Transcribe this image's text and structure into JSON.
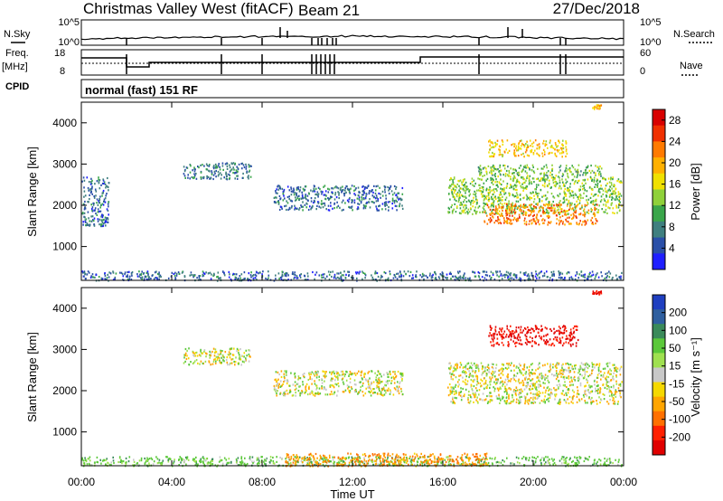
{
  "header": {
    "title": "Christmas Valley West (fitACF)",
    "beam": "Beam 21",
    "date": "27/Dec/2018"
  },
  "top_panels": {
    "nsky_label": "N.Sky",
    "nsearch_label": "N.Search",
    "noise_ticks": [
      "10^5",
      "10^0"
    ],
    "noise_ticks_right": [
      "10^5",
      "10^0"
    ],
    "freq_label": "Freq.",
    "freq_unit": "[MHz]",
    "freq_ticks": [
      "18",
      "8"
    ],
    "nave_label": "Nave",
    "nave_ticks": [
      "60",
      "0"
    ],
    "cpid_label": "CPID",
    "cpid_value": "normal (fast) 151 RF"
  },
  "x_axis": {
    "label": "Time UT",
    "ticks": [
      "00:00",
      "04:00",
      "08:00",
      "12:00",
      "16:00",
      "20:00",
      "00:00"
    ]
  },
  "colors": {
    "power": [
      "#1f1fff",
      "#2a4fa8",
      "#3f7f7f",
      "#3aa64a",
      "#8fd13a",
      "#f0e000",
      "#ffb000",
      "#ff7a00",
      "#f03000",
      "#d80000"
    ],
    "velocity": [
      "#1f3fc0",
      "#2f5f9f",
      "#3a8a5a",
      "#5bc83a",
      "#9fe050",
      "#c8c8c8",
      "#f5d800",
      "#ffa500",
      "#ff7000",
      "#ff2000",
      "#e00000"
    ]
  },
  "chart_data": [
    {
      "type": "heatmap",
      "title": "",
      "xlabel": "Time UT",
      "ylabel": "Slant Range [km]",
      "x_range_hours": [
        0,
        24
      ],
      "ylim": [
        180,
        4500
      ],
      "y_ticks": [
        "1000",
        "2000",
        "3000",
        "4000"
      ],
      "colorbar": {
        "label": "Power [dB]",
        "ticks": [
          "4",
          "8",
          "12",
          "16",
          "20",
          "24",
          "28"
        ],
        "range": [
          0,
          30
        ]
      },
      "regions": [
        {
          "t0": 0.0,
          "t1": 23.9,
          "r0": 190,
          "r1": 420,
          "value": 6
        },
        {
          "t0": 0.0,
          "t1": 1.2,
          "r0": 1500,
          "r1": 2700,
          "value": 6
        },
        {
          "t0": 4.5,
          "t1": 7.5,
          "r0": 2650,
          "r1": 3050,
          "value": 7
        },
        {
          "t0": 8.5,
          "t1": 14.2,
          "r0": 1900,
          "r1": 2500,
          "value": 6
        },
        {
          "t0": 16.2,
          "t1": 23.9,
          "r0": 1800,
          "r1": 2700,
          "value": 13
        },
        {
          "t0": 17.8,
          "t1": 22.8,
          "r0": 1550,
          "r1": 2050,
          "value": 22
        },
        {
          "t0": 18.0,
          "t1": 21.5,
          "r0": 3200,
          "r1": 3600,
          "value": 18
        },
        {
          "t0": 17.5,
          "t1": 23.0,
          "r0": 2700,
          "r1": 3000,
          "value": 12
        },
        {
          "t0": 22.6,
          "t1": 23.0,
          "r0": 4350,
          "r1": 4450,
          "value": 20
        }
      ]
    },
    {
      "type": "heatmap",
      "title": "",
      "xlabel": "Time UT",
      "ylabel": "Slant Range [km]",
      "x_range_hours": [
        0,
        24
      ],
      "ylim": [
        180,
        4500
      ],
      "y_ticks": [
        "1000",
        "2000",
        "3000",
        "4000"
      ],
      "colorbar": {
        "label": "Velocity [m s⁻¹]",
        "ticks": [
          "200",
          "100",
          "50",
          "15",
          "-15",
          "-50",
          "-100",
          "-200"
        ],
        "range": [
          -250,
          250
        ]
      },
      "regions": [
        {
          "t0": 0.0,
          "t1": 23.9,
          "r0": 190,
          "r1": 420,
          "value": 30
        },
        {
          "t0": 9.0,
          "t1": 18.0,
          "r0": 190,
          "r1": 500,
          "value": -40
        },
        {
          "t0": 4.5,
          "t1": 7.5,
          "r0": 2650,
          "r1": 3050,
          "value": 0
        },
        {
          "t0": 8.5,
          "t1": 14.2,
          "r0": 1900,
          "r1": 2500,
          "value": 0
        },
        {
          "t0": 16.2,
          "t1": 23.9,
          "r0": 1700,
          "r1": 2700,
          "value": 0
        },
        {
          "t0": 18.0,
          "t1": 22.0,
          "r0": 3100,
          "r1": 3600,
          "value": -200
        },
        {
          "t0": 22.6,
          "t1": 23.0,
          "r0": 4350,
          "r1": 4450,
          "value": -200
        }
      ]
    }
  ]
}
